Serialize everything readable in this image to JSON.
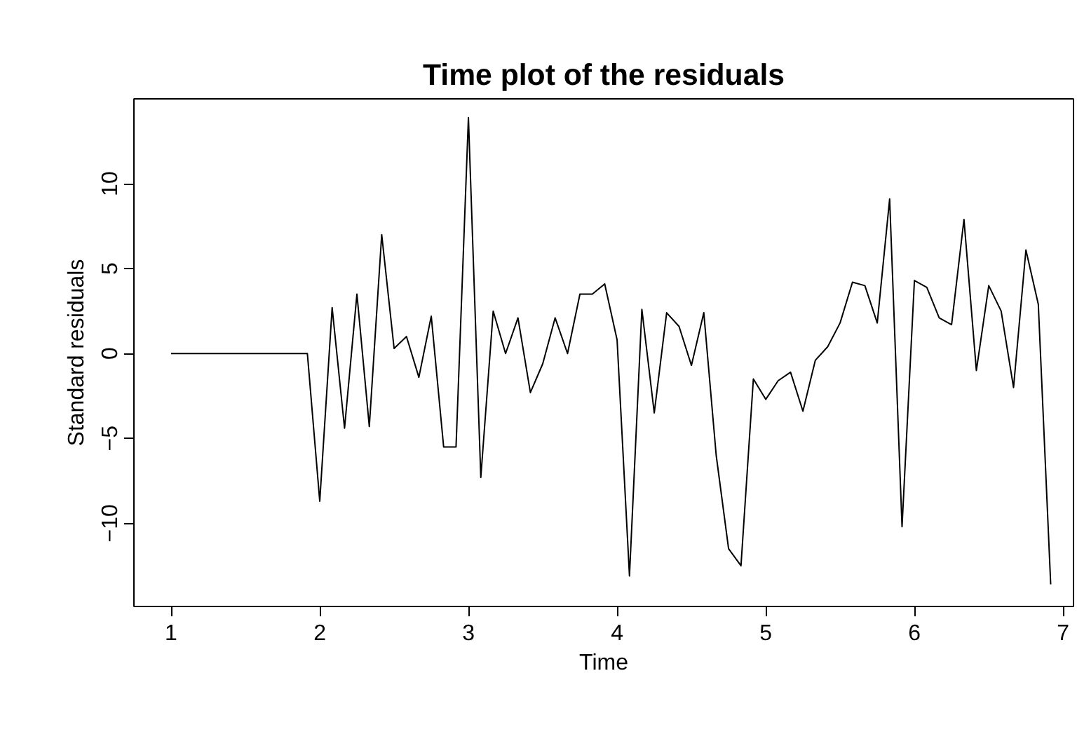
{
  "chart_data": {
    "type": "line",
    "title": "Time plot of the residuals",
    "xlabel": "Time",
    "ylabel": "Standard residuals",
    "x": [
      1,
      1.0833,
      1.1667,
      1.25,
      1.3333,
      1.4167,
      1.5,
      1.5833,
      1.6667,
      1.75,
      1.8333,
      1.9167,
      2,
      2.0833,
      2.1667,
      2.25,
      2.3333,
      2.4167,
      2.5,
      2.5833,
      2.6667,
      2.75,
      2.8333,
      2.9167,
      3,
      3.0833,
      3.1667,
      3.25,
      3.3333,
      3.4167,
      3.5,
      3.5833,
      3.6667,
      3.75,
      3.8333,
      3.9167,
      4,
      4.0833,
      4.1667,
      4.25,
      4.3333,
      4.4167,
      4.5,
      4.5833,
      4.6667,
      4.75,
      4.8333,
      4.9167,
      5,
      5.0833,
      5.1667,
      5.25,
      5.3333,
      5.4167,
      5.5,
      5.5833,
      5.6667,
      5.75,
      5.8333,
      5.9167,
      6,
      6.0833,
      6.1667,
      6.25,
      6.3333,
      6.4167,
      6.5,
      6.5833,
      6.6667,
      6.75,
      6.8333,
      6.9167
    ],
    "series": [
      {
        "color": "#000000",
        "values": [
          0,
          0,
          0,
          0,
          0,
          0,
          0,
          0,
          0,
          0,
          0,
          0,
          -8.7,
          2.7,
          -4.4,
          3.5,
          -4.3,
          7.0,
          0.3,
          1.0,
          -1.4,
          2.2,
          -5.5,
          -5.5,
          13.9,
          -7.3,
          2.5,
          0.0,
          2.1,
          -2.3,
          -0.6,
          2.1,
          0.0,
          3.5,
          3.5,
          4.1,
          0.8,
          -13.1,
          2.6,
          -3.5,
          2.4,
          1.6,
          -0.7,
          2.4,
          -6.0,
          -11.5,
          -12.5,
          -1.5,
          -2.7,
          -1.6,
          -1.1,
          -3.4,
          -0.4,
          0.4,
          1.8,
          4.2,
          4.0,
          1.8,
          9.1,
          -10.2,
          4.3,
          3.9,
          2.1,
          1.7,
          7.9,
          -1.0,
          4.0,
          2.5,
          -2.0,
          6.1,
          2.9,
          -13.6
        ]
      }
    ],
    "xlim": [
      0.75,
      7.07
    ],
    "ylim": [
      -14.9,
      15.0
    ],
    "xticks": [
      1,
      2,
      3,
      4,
      5,
      6,
      7
    ],
    "yticks": [
      -10,
      -5,
      0,
      5,
      10
    ],
    "grid": false,
    "marker": "none",
    "line_style": "solid"
  }
}
